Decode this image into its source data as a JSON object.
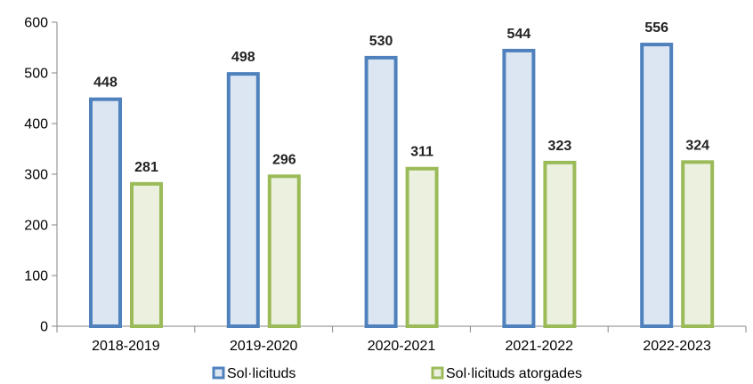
{
  "chart_data": {
    "type": "bar",
    "title": "",
    "xlabel": "",
    "ylabel": "",
    "categories": [
      "2018-2019",
      "2019-2020",
      "2020-2021",
      "2021-2022",
      "2022-2023"
    ],
    "series": [
      {
        "name": "Sol·licituds",
        "values": [
          448,
          498,
          530,
          544,
          556
        ],
        "fill": "#dce6f2",
        "stroke": "#4f81bd"
      },
      {
        "name": "Sol·licituds atorgades",
        "values": [
          281,
          296,
          311,
          323,
          324
        ],
        "fill": "#ebf1de",
        "stroke": "#9bbb59"
      }
    ],
    "ylim": [
      0,
      600
    ],
    "yticks": [
      0,
      100,
      200,
      300,
      400,
      500,
      600
    ],
    "grid": false,
    "legend_position": "bottom",
    "data_labels": true
  }
}
